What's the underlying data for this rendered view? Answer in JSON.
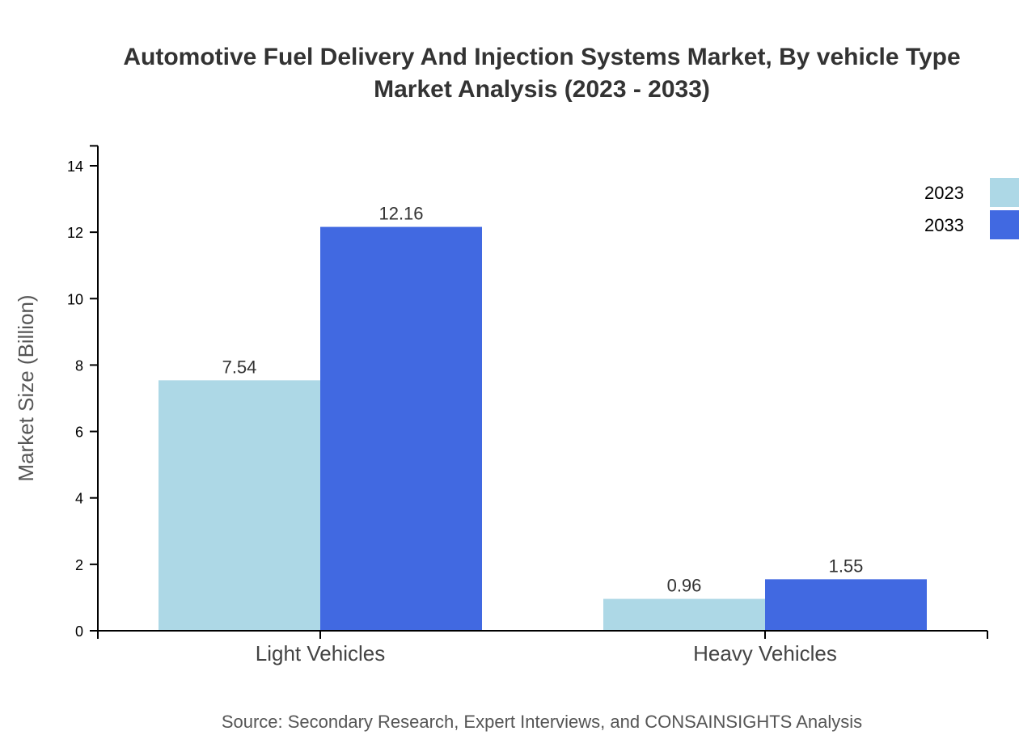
{
  "chart_data": {
    "type": "bar",
    "title": "Automotive Fuel Delivery And Injection Systems Market, By vehicle Type",
    "subtitle": "Market Analysis (2023 - 2033)",
    "xlabel": "",
    "ylabel": "Market Size (Billion)",
    "categories": [
      "Light Vehicles",
      "Heavy Vehicles"
    ],
    "series": [
      {
        "name": "2023",
        "color": "#add8e6",
        "values": [
          7.54,
          0.96
        ],
        "labels": [
          "7.54",
          "0.96"
        ]
      },
      {
        "name": "2033",
        "color": "#4169e1",
        "values": [
          12.16,
          1.55
        ],
        "labels": [
          "12.16",
          "1.55"
        ]
      }
    ],
    "ylim": [
      0,
      14.6
    ],
    "yticks": [
      0,
      2,
      4,
      6,
      8,
      10,
      12,
      14
    ],
    "grid": false,
    "legend_position": "top-right",
    "source": "Source: Secondary Research, Expert Interviews, and CONSAINSIGHTS Analysis"
  }
}
